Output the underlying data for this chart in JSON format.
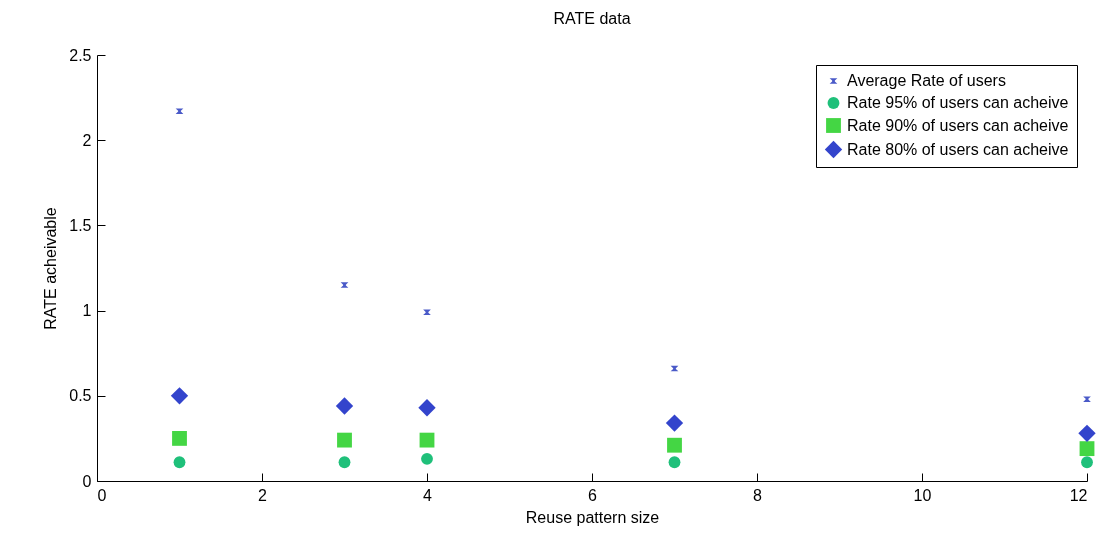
{
  "chart_data": {
    "type": "scatter",
    "title": "RATE data",
    "xlabel": "Reuse pattern size",
    "ylabel": "RATE acheivable",
    "x": [
      1,
      3,
      4,
      7,
      12
    ],
    "series": [
      {
        "name": "Average Rate of users",
        "color": "#4a5ac8",
        "marker": "star",
        "values": [
          2.17,
          1.15,
          0.99,
          0.66,
          0.48
        ]
      },
      {
        "name": "Rate 95% of users can acheive",
        "color": "#1fc07a",
        "marker": "circle",
        "values": [
          0.11,
          0.11,
          0.13,
          0.11,
          0.11
        ]
      },
      {
        "name": "Rate 90% of users can acheive",
        "color": "#44d644",
        "marker": "square",
        "values": [
          0.25,
          0.24,
          0.24,
          0.21,
          0.19
        ]
      },
      {
        "name": "Rate 80% of users can acheive",
        "color": "#3344cc",
        "marker": "diamond",
        "values": [
          0.5,
          0.44,
          0.43,
          0.34,
          0.28
        ]
      }
    ],
    "xlim": [
      0,
      12
    ],
    "xticks": [
      0,
      2,
      4,
      6,
      8,
      10,
      12
    ],
    "ylim": [
      0,
      2.5
    ],
    "yticks": [
      0,
      0.5,
      1,
      1.5,
      2,
      2.5
    ],
    "grid": false,
    "legend": "top right"
  }
}
